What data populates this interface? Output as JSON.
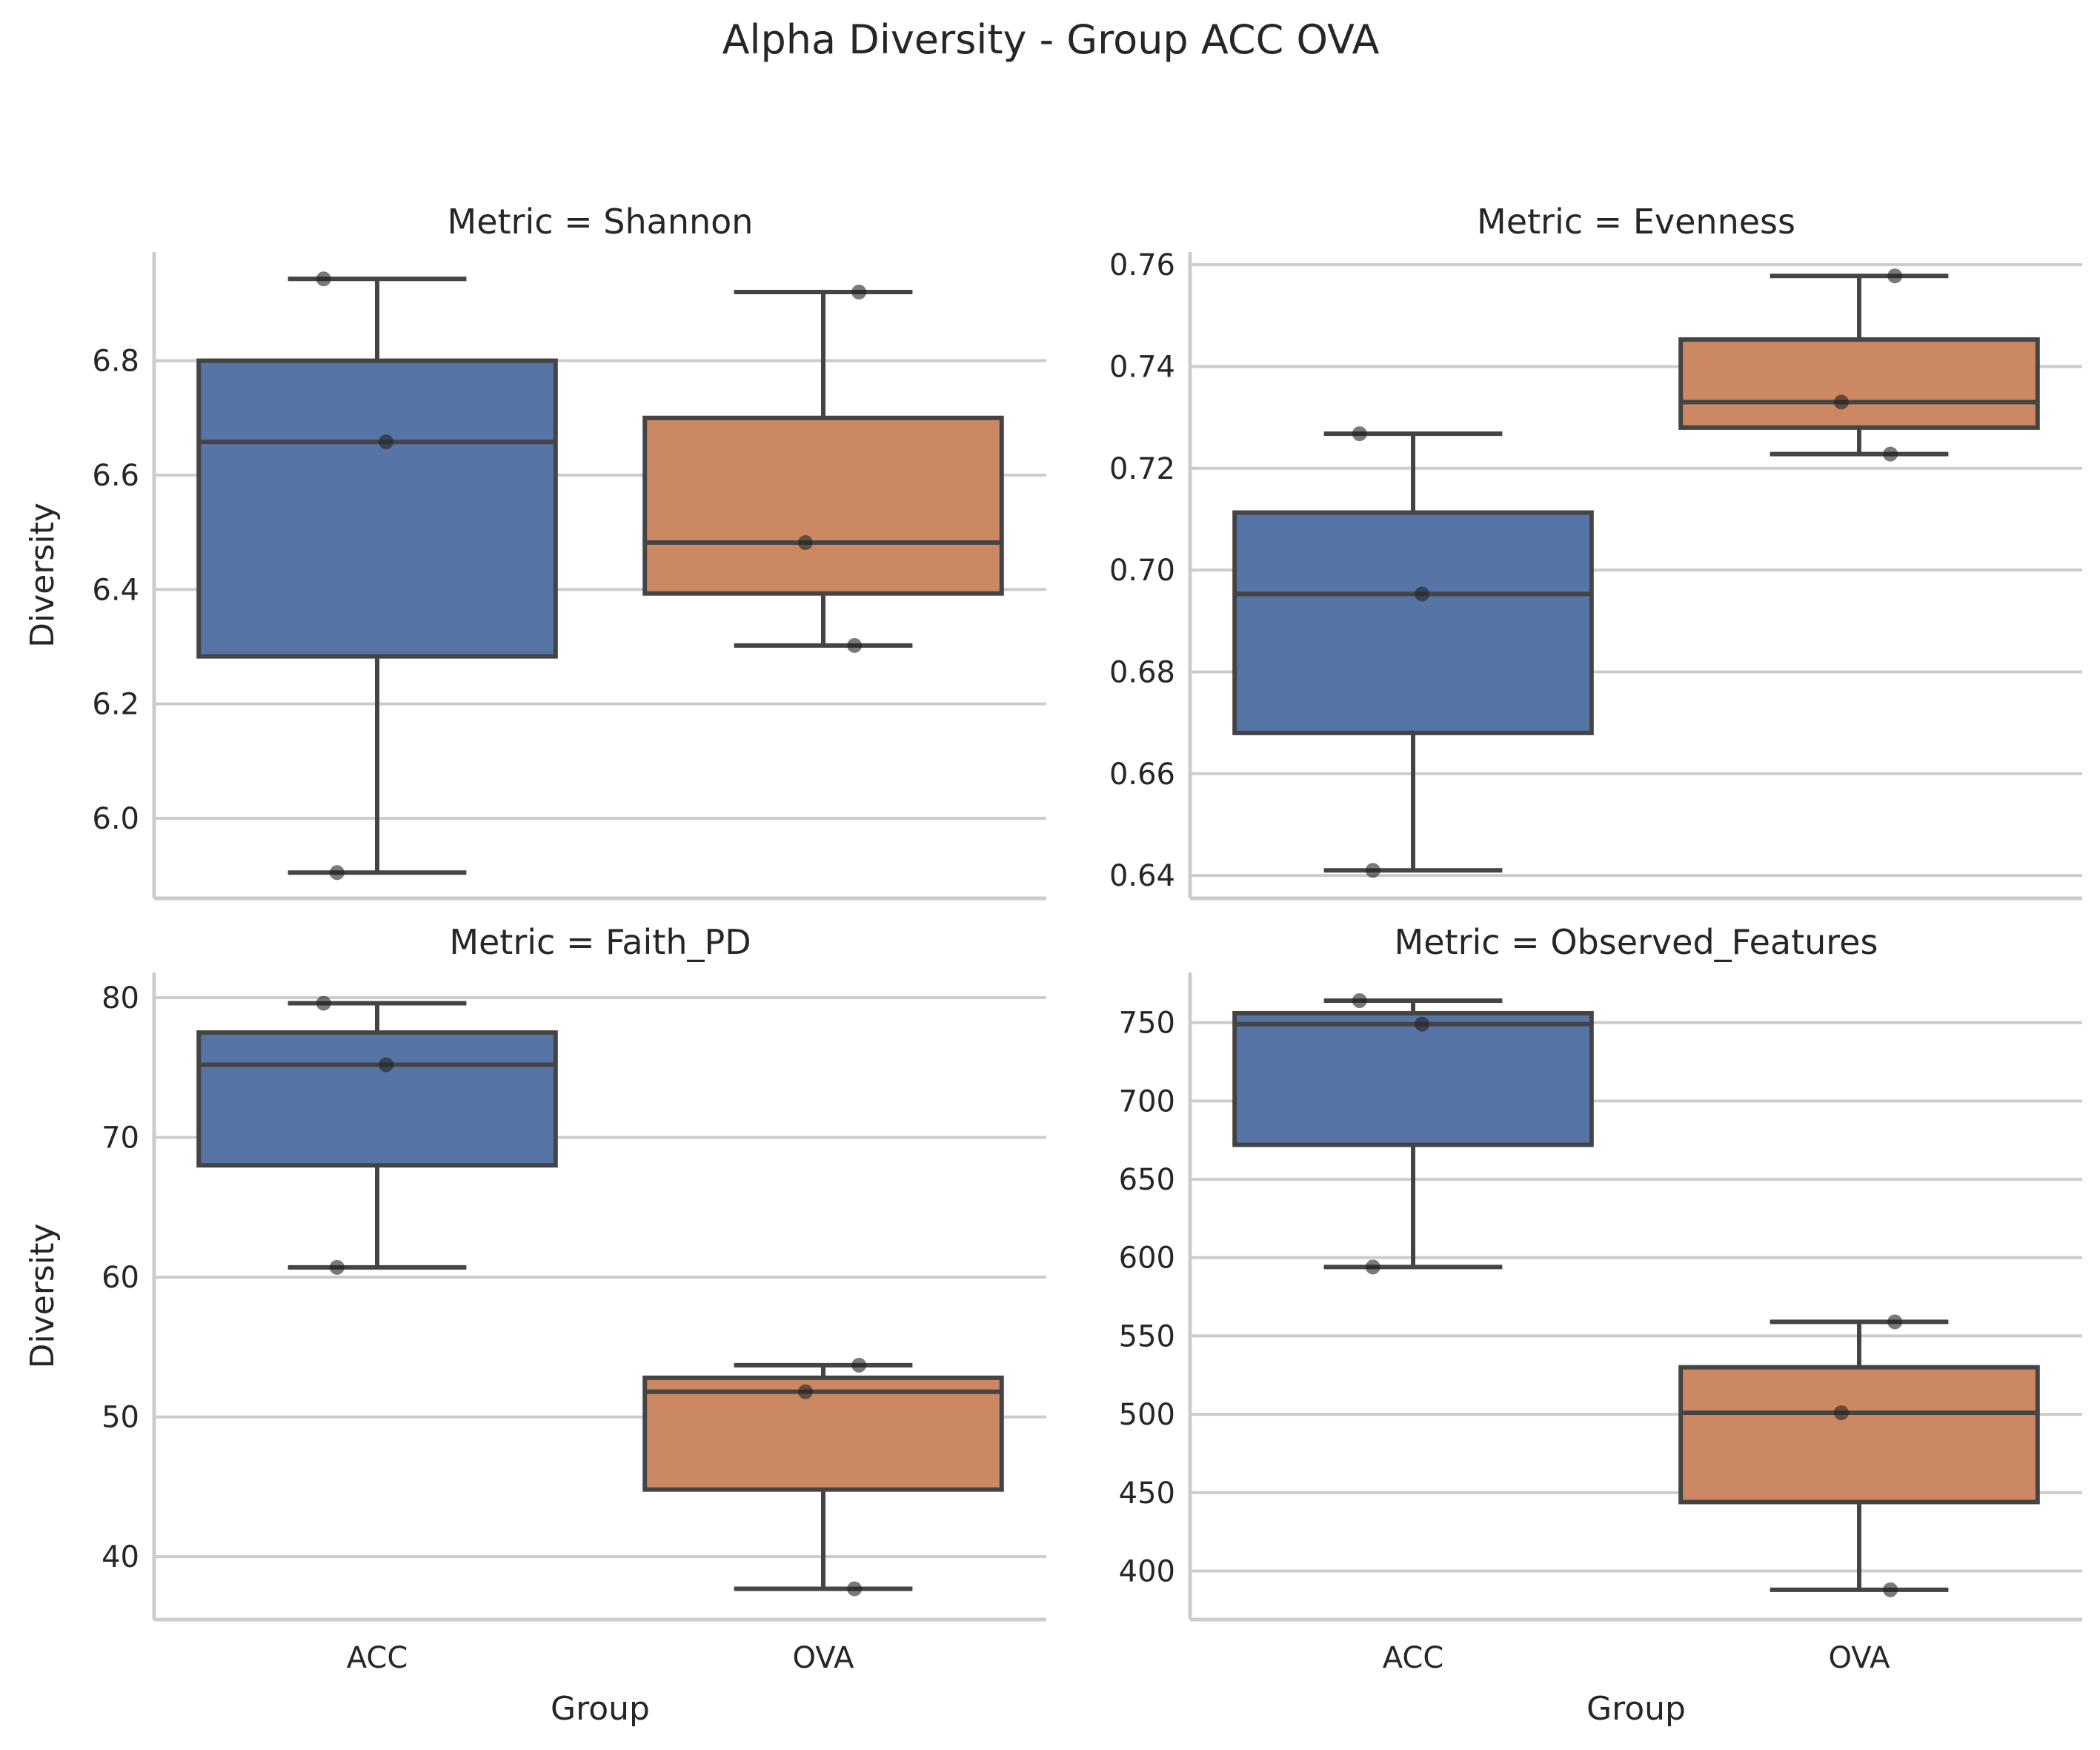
{
  "figure": {
    "title": "Alpha Diversity - Group ACC OVA",
    "xlabel": "Group",
    "ylabel": "Diversity"
  },
  "colors": {
    "ACC": "#5774a7",
    "OVA": "#cc8763"
  },
  "chart_data": [
    {
      "type": "box",
      "title": "Metric = Shannon",
      "categories": [
        "ACC",
        "OVA"
      ],
      "ylim": [
        5.86,
        6.99
      ],
      "yticks": [
        "6.0",
        "6.2",
        "6.4",
        "6.6",
        "6.8"
      ],
      "boxes": [
        {
          "name": "ACC",
          "whisker_low": 5.905,
          "q1": 6.283,
          "median": 6.658,
          "q3": 6.8,
          "whisker_high": 6.943
        },
        {
          "name": "OVA",
          "whisker_low": 6.302,
          "q1": 6.393,
          "median": 6.482,
          "q3": 6.7,
          "whisker_high": 6.92
        }
      ],
      "points": [
        {
          "group": "ACC",
          "y": 6.943
        },
        {
          "group": "ACC",
          "y": 6.658
        },
        {
          "group": "ACC",
          "y": 5.905
        },
        {
          "group": "OVA",
          "y": 6.92
        },
        {
          "group": "OVA",
          "y": 6.482
        },
        {
          "group": "OVA",
          "y": 6.302
        }
      ]
    },
    {
      "type": "box",
      "title": "Metric = Evenness",
      "categories": [
        "ACC",
        "OVA"
      ],
      "ylim": [
        0.6355,
        0.7625
      ],
      "yticks": [
        "0.64",
        "0.66",
        "0.68",
        "0.70",
        "0.72",
        "0.74",
        "0.76"
      ],
      "boxes": [
        {
          "name": "ACC",
          "whisker_low": 0.641,
          "q1": 0.668,
          "median": 0.6953,
          "q3": 0.7113,
          "whisker_high": 0.7268
        },
        {
          "name": "OVA",
          "whisker_low": 0.7228,
          "q1": 0.728,
          "median": 0.733,
          "q3": 0.7453,
          "whisker_high": 0.7578
        }
      ],
      "points": [
        {
          "group": "ACC",
          "y": 0.7268
        },
        {
          "group": "ACC",
          "y": 0.6953
        },
        {
          "group": "ACC",
          "y": 0.641
        },
        {
          "group": "OVA",
          "y": 0.7578
        },
        {
          "group": "OVA",
          "y": 0.733
        },
        {
          "group": "OVA",
          "y": 0.7228
        }
      ]
    },
    {
      "type": "box",
      "title": "Metric = Faith_PD",
      "categories": [
        "ACC",
        "OVA"
      ],
      "ylim": [
        35.5,
        81.8
      ],
      "yticks": [
        "40",
        "50",
        "60",
        "70",
        "80"
      ],
      "boxes": [
        {
          "name": "ACC",
          "whisker_low": 60.7,
          "q1": 68.0,
          "median": 75.2,
          "q3": 77.5,
          "whisker_high": 79.6
        },
        {
          "name": "OVA",
          "whisker_low": 37.7,
          "q1": 44.8,
          "median": 51.8,
          "q3": 52.8,
          "whisker_high": 53.7
        }
      ],
      "points": [
        {
          "group": "ACC",
          "y": 79.6
        },
        {
          "group": "ACC",
          "y": 75.2
        },
        {
          "group": "ACC",
          "y": 60.7
        },
        {
          "group": "OVA",
          "y": 53.7
        },
        {
          "group": "OVA",
          "y": 51.8
        },
        {
          "group": "OVA",
          "y": 37.7
        }
      ]
    },
    {
      "type": "box",
      "title": "Metric = Observed_Features",
      "categories": [
        "ACC",
        "OVA"
      ],
      "ylim": [
        369,
        782
      ],
      "yticks": [
        "400",
        "450",
        "500",
        "550",
        "600",
        "650",
        "700",
        "750"
      ],
      "boxes": [
        {
          "name": "ACC",
          "whisker_low": 594,
          "q1": 672,
          "median": 749,
          "q3": 756,
          "whisker_high": 764
        },
        {
          "name": "OVA",
          "whisker_low": 388,
          "q1": 444,
          "median": 501,
          "q3": 530,
          "whisker_high": 559
        }
      ],
      "points": [
        {
          "group": "ACC",
          "y": 764
        },
        {
          "group": "ACC",
          "y": 749
        },
        {
          "group": "ACC",
          "y": 594
        },
        {
          "group": "OVA",
          "y": 559
        },
        {
          "group": "OVA",
          "y": 501
        },
        {
          "group": "OVA",
          "y": 388
        }
      ]
    }
  ]
}
